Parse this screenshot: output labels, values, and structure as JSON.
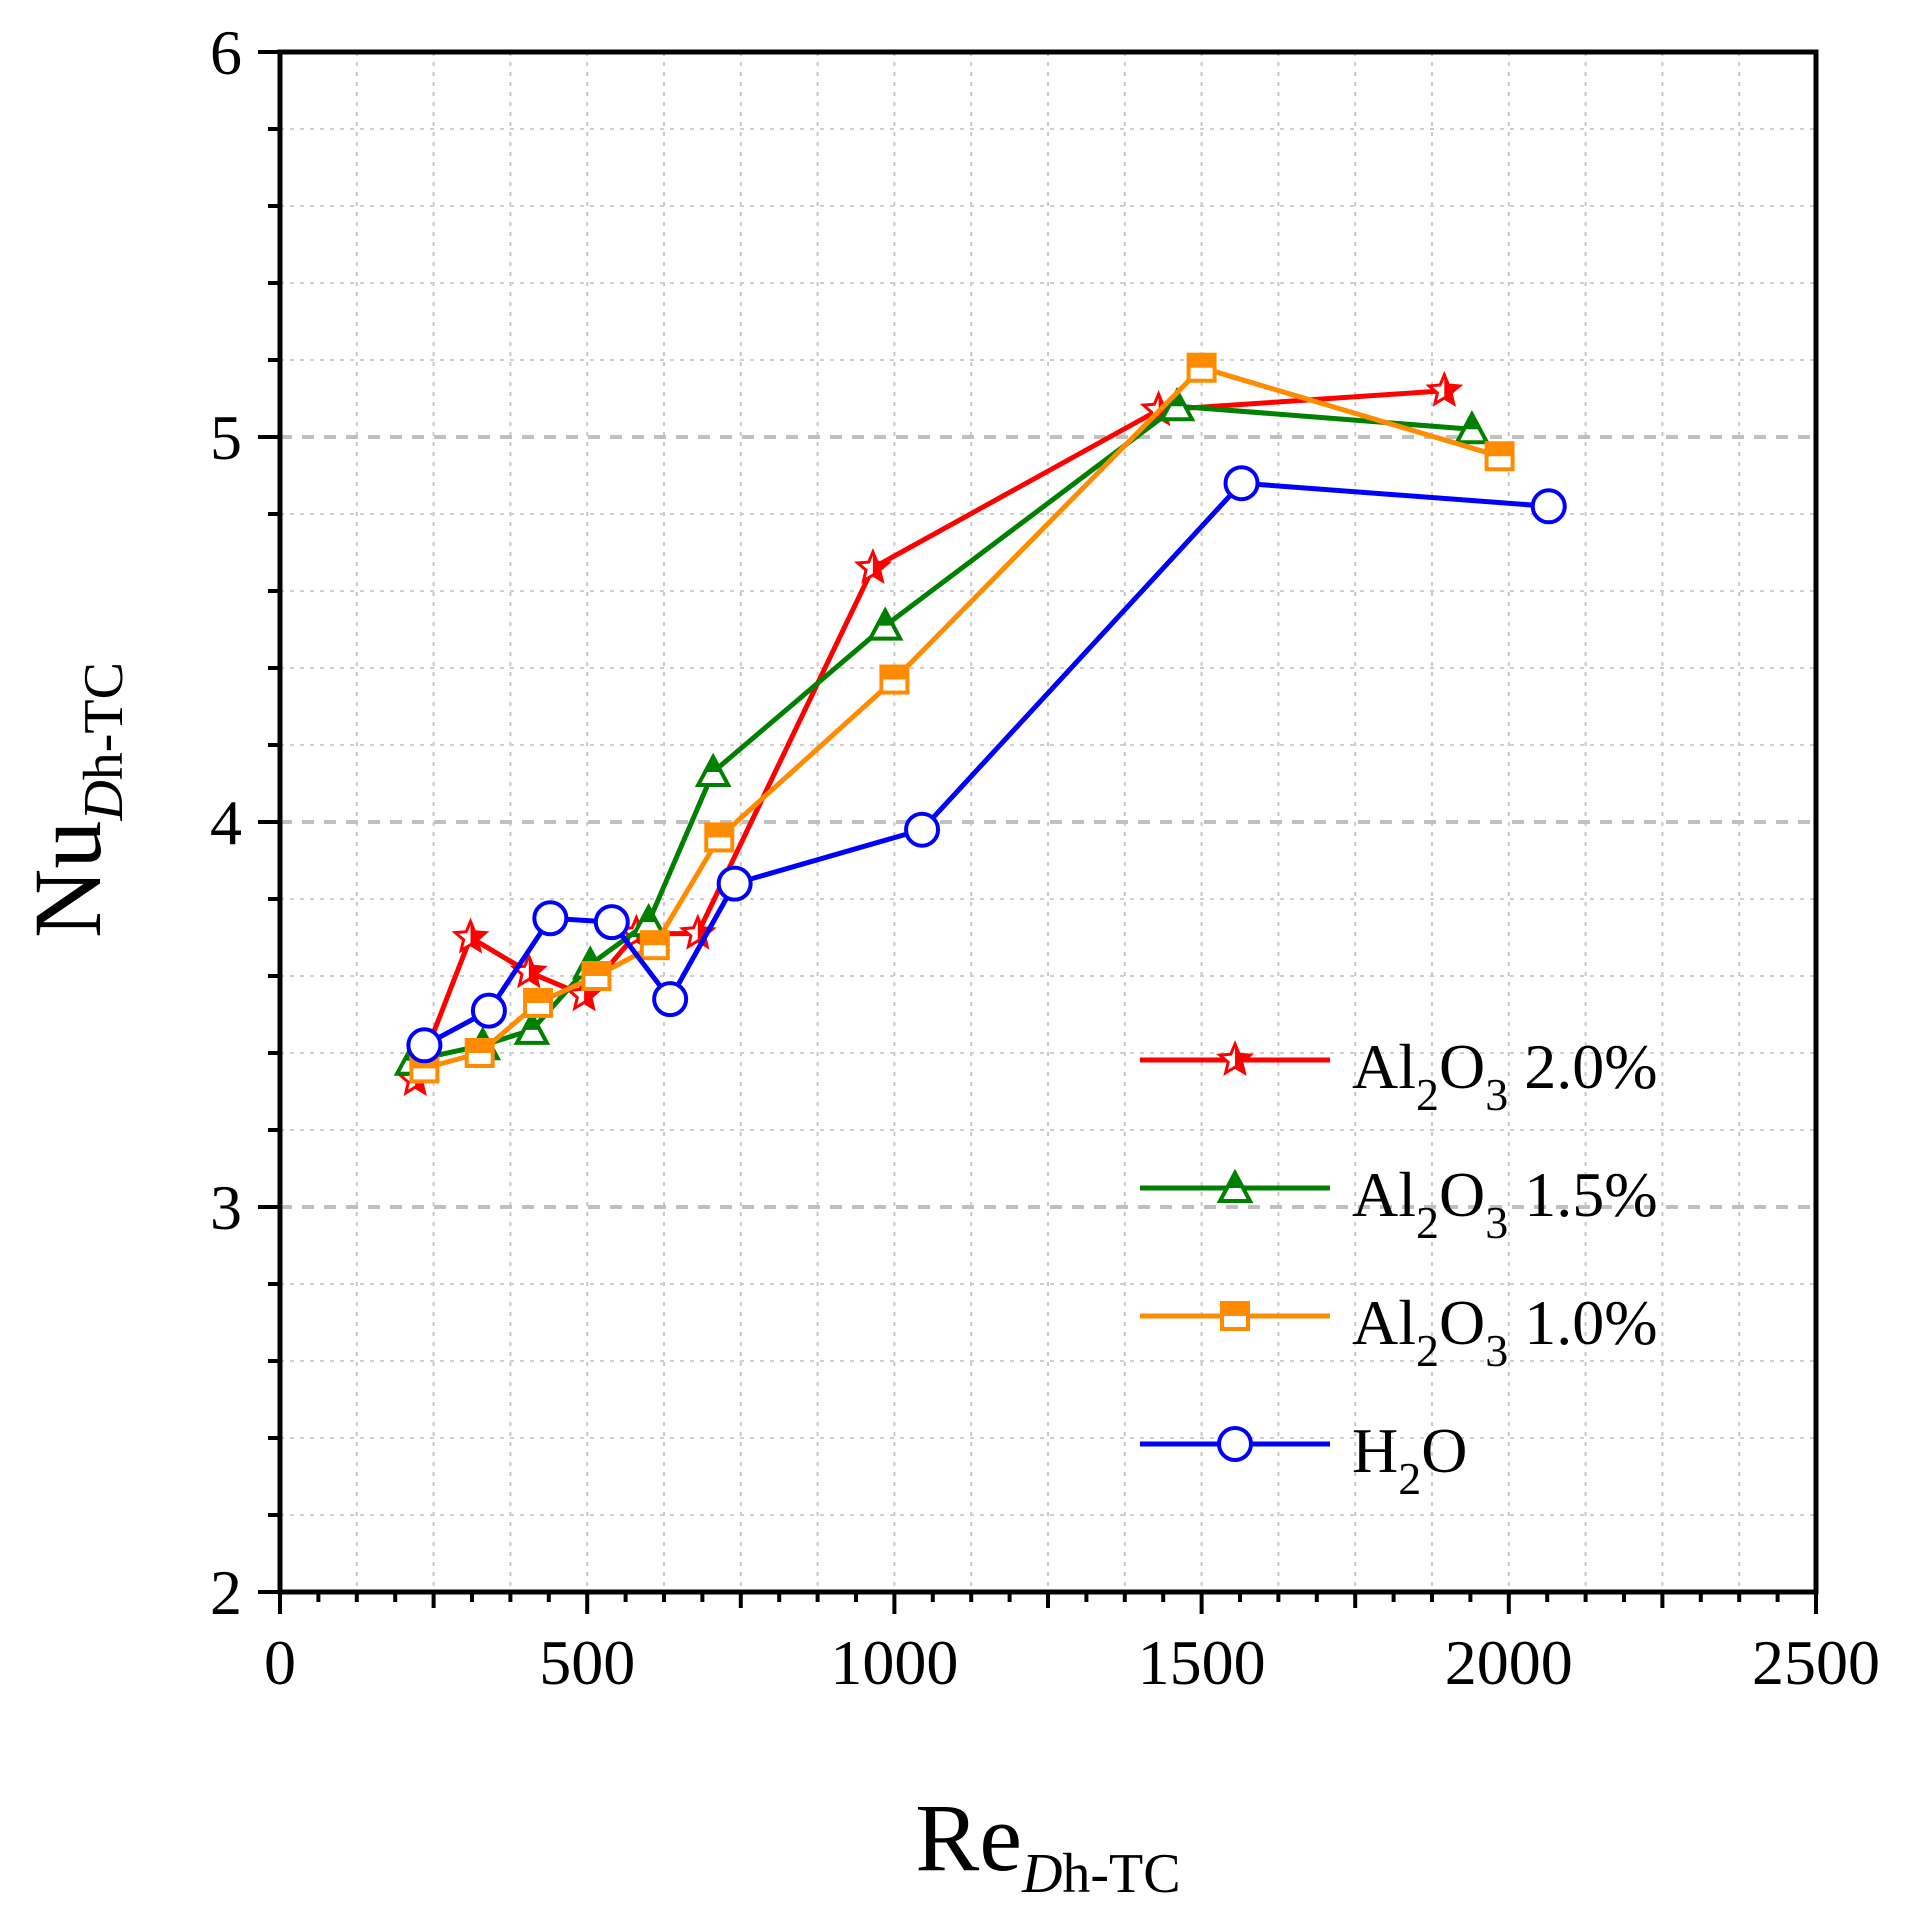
{
  "chart_data": {
    "type": "line",
    "title": "",
    "xlabel": {
      "main": "Re",
      "sub_italic": "D",
      "sub": "h-TC"
    },
    "ylabel": {
      "main": "Nu",
      "sub_italic": "D",
      "sub": "h-TC"
    },
    "xlim": [
      0,
      2500
    ],
    "ylim": [
      2,
      6
    ],
    "x_ticks": [
      0,
      500,
      1000,
      1500,
      2000,
      2500
    ],
    "y_ticks": [
      2,
      3,
      4,
      5,
      6
    ],
    "x_tick_labels": [
      "0",
      "500",
      "1000",
      "1500",
      "2000",
      "2500"
    ],
    "y_tick_labels": [
      "2",
      "3",
      "4",
      "5",
      "6"
    ],
    "grid": true,
    "legend_position": "bottom-right",
    "series": [
      {
        "name": "Al2O3 2.0%",
        "legend": {
          "pre": "Al",
          "sub1": "2",
          "mid": "O",
          "sub2": "3",
          "post": " 2.0%"
        },
        "color": "#ff0000",
        "marker": "star",
        "points": [
          [
            220,
            3.33
          ],
          [
            310,
            3.7
          ],
          [
            405,
            3.61
          ],
          [
            495,
            3.55
          ],
          [
            580,
            3.71
          ],
          [
            680,
            3.71
          ],
          [
            965,
            4.66
          ],
          [
            1430,
            5.07
          ],
          [
            1895,
            5.12
          ]
        ]
      },
      {
        "name": "Al2O3 1.5%",
        "legend": {
          "pre": "Al",
          "sub1": "2",
          "mid": "O",
          "sub2": "3",
          "post": " 1.5%"
        },
        "color": "#008000",
        "marker": "triangle",
        "points": [
          [
            215,
            3.38
          ],
          [
            330,
            3.42
          ],
          [
            410,
            3.46
          ],
          [
            505,
            3.63
          ],
          [
            600,
            3.74
          ],
          [
            705,
            4.13
          ],
          [
            985,
            4.51
          ],
          [
            1460,
            5.08
          ],
          [
            1940,
            5.02
          ]
        ]
      },
      {
        "name": "Al2O3 1.0%",
        "legend": {
          "pre": "Al",
          "sub1": "2",
          "mid": "O",
          "sub2": "3",
          "post": " 1.0%"
        },
        "color": "#ff8c00",
        "marker": "square",
        "points": [
          [
            235,
            3.36
          ],
          [
            325,
            3.4
          ],
          [
            420,
            3.53
          ],
          [
            515,
            3.6
          ],
          [
            610,
            3.68
          ],
          [
            715,
            3.96
          ],
          [
            1000,
            4.37
          ],
          [
            1500,
            5.18
          ],
          [
            1985,
            4.95
          ]
        ]
      },
      {
        "name": "H2O",
        "legend": {
          "pre": "H",
          "sub1": "2",
          "mid": "O",
          "sub2": "",
          "post": ""
        },
        "color": "#0000ff",
        "marker": "circle",
        "points": [
          [
            235,
            3.42
          ],
          [
            340,
            3.51
          ],
          [
            440,
            3.75
          ],
          [
            540,
            3.74
          ],
          [
            635,
            3.54
          ],
          [
            740,
            3.84
          ],
          [
            1045,
            3.98
          ],
          [
            1565,
            4.88
          ],
          [
            2065,
            4.82
          ]
        ]
      }
    ]
  }
}
